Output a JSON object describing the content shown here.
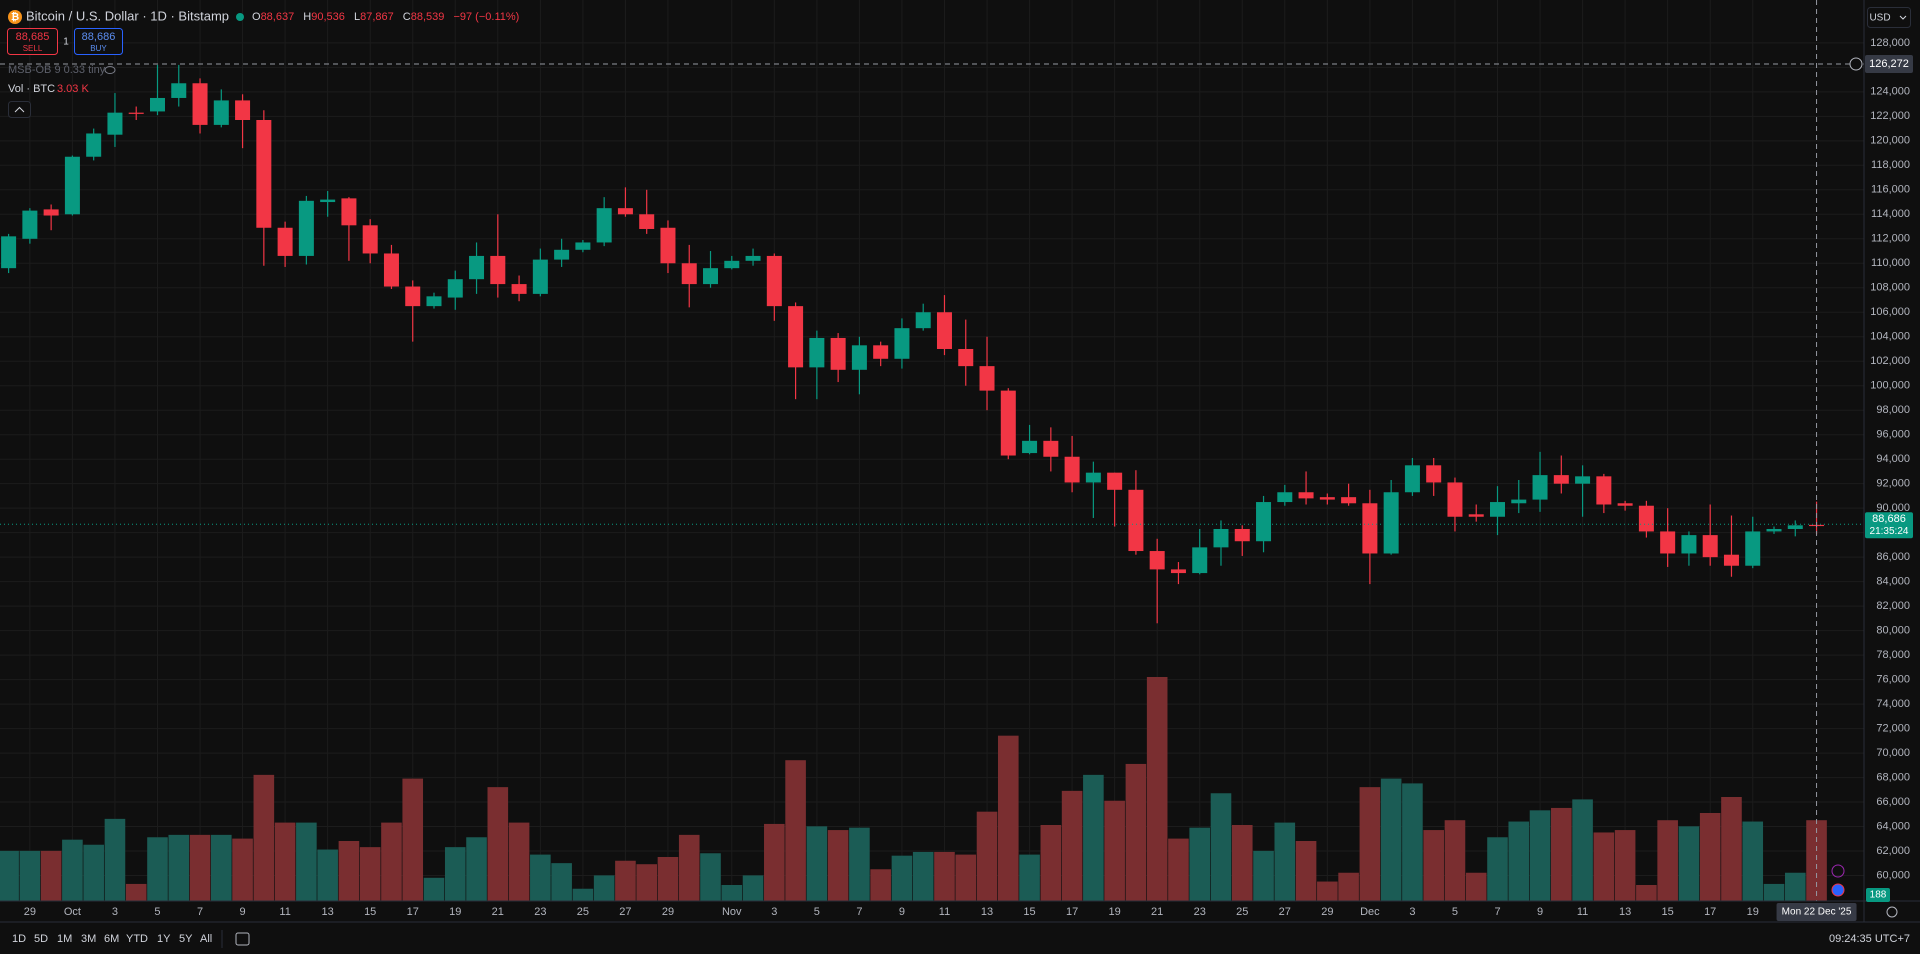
{
  "chart_data": {
    "type": "candlestick",
    "title": "Bitcoin / U.S. Dollar · 1D · Bitstamp",
    "categories": [
      null,
      "29",
      null,
      "Oct",
      null,
      "3",
      null,
      "5",
      null,
      "7",
      null,
      "9",
      null,
      "11",
      null,
      "13",
      null,
      "15",
      null,
      "17",
      null,
      "19",
      null,
      "21",
      null,
      "23",
      null,
      "25",
      null,
      "27",
      null,
      "29",
      null,
      null,
      "Nov",
      null,
      "3",
      null,
      "5",
      null,
      "7",
      null,
      "9",
      null,
      "11",
      null,
      "13",
      null,
      "15",
      null,
      "17",
      null,
      "19",
      null,
      "21",
      null,
      "23",
      null,
      "25",
      null,
      "27",
      null,
      "29",
      null,
      "Dec",
      null,
      "3",
      null,
      "5",
      null,
      "7",
      null,
      "9",
      null,
      "11",
      null,
      "13",
      null,
      "15",
      null,
      "17",
      null,
      "19",
      null,
      null,
      null
    ],
    "open": [
      109600,
      112000,
      114400,
      114000,
      118700,
      120500,
      122300,
      122400,
      123500,
      124700,
      121300,
      123300,
      121700,
      112900,
      110600,
      115000,
      115300,
      113100,
      110800,
      108100,
      106500,
      107200,
      108700,
      110600,
      108300,
      107500,
      110300,
      111100,
      111700,
      114500,
      114000,
      112900,
      110000,
      108300,
      109600,
      110200,
      110600,
      106500,
      101500,
      103900,
      101300,
      103300,
      102200,
      104700,
      106000,
      103000,
      101600,
      99600,
      94500,
      95500,
      94200,
      92100,
      92900,
      91500,
      86500,
      85000,
      84700,
      86800,
      88300,
      87300,
      90500,
      91300,
      90900,
      90900,
      90400,
      86300,
      91300,
      93500,
      92100,
      89500,
      89300,
      90400,
      90700,
      92700,
      92000,
      92600,
      90400,
      90200,
      88100,
      86300,
      87800,
      86200,
      85300,
      88100,
      88300,
      88637
    ],
    "high": [
      112400,
      114500,
      114800,
      118800,
      121000,
      123900,
      122800,
      126200,
      126200,
      125100,
      124200,
      123800,
      122500,
      113400,
      115500,
      115900,
      115400,
      113600,
      111500,
      108600,
      107600,
      109400,
      111700,
      114000,
      109000,
      111200,
      112000,
      111900,
      115400,
      116200,
      116000,
      113500,
      111500,
      111000,
      110600,
      111200,
      110800,
      106800,
      104500,
      104300,
      104000,
      103600,
      105500,
      106700,
      107400,
      105400,
      104000,
      99800,
      96800,
      96600,
      95900,
      93800,
      92900,
      93100,
      87500,
      85600,
      88300,
      89000,
      88600,
      91000,
      91900,
      93000,
      91200,
      92000,
      91500,
      92300,
      94100,
      94100,
      92500,
      90300,
      91800,
      92300,
      94600,
      94300,
      93500,
      92800,
      90600,
      90600,
      90000,
      88100,
      90300,
      89400,
      89300,
      88500,
      89000,
      90536
    ],
    "low": [
      109200,
      111600,
      112700,
      113900,
      118400,
      119500,
      121700,
      122100,
      122800,
      120600,
      121100,
      119400,
      109800,
      109700,
      109900,
      113800,
      110200,
      110000,
      107900,
      103600,
      106300,
      106200,
      107500,
      107200,
      106900,
      107300,
      109700,
      110900,
      111400,
      113800,
      112400,
      109200,
      106400,
      108000,
      109500,
      109800,
      105300,
      98900,
      98900,
      100300,
      99300,
      101600,
      101400,
      104500,
      102500,
      100000,
      98000,
      94000,
      94400,
      93000,
      91300,
      89200,
      88500,
      86200,
      80600,
      83800,
      84600,
      85300,
      86100,
      86400,
      90200,
      90300,
      90300,
      90200,
      83800,
      86200,
      91000,
      91000,
      88100,
      88900,
      87800,
      89600,
      89700,
      91200,
      89300,
      89600,
      89800,
      87600,
      85200,
      85300,
      85300,
      84400,
      85100,
      87900,
      87700,
      87867
    ],
    "close": [
      112200,
      114300,
      113900,
      118700,
      120600,
      122300,
      122200,
      123500,
      124700,
      121300,
      123300,
      121700,
      112900,
      110600,
      115100,
      115200,
      113100,
      110800,
      108100,
      106500,
      107300,
      108700,
      110600,
      108300,
      107500,
      110300,
      111100,
      111700,
      114500,
      114000,
      112800,
      110000,
      108300,
      109600,
      110200,
      110600,
      106500,
      101500,
      103900,
      101300,
      103300,
      102200,
      104700,
      106000,
      103000,
      101600,
      99600,
      94300,
      95500,
      94200,
      92100,
      92900,
      91500,
      86500,
      85000,
      84700,
      86800,
      88300,
      87300,
      90500,
      91300,
      90800,
      90700,
      90400,
      86300,
      91300,
      93500,
      92100,
      89300,
      89300,
      90500,
      90700,
      92700,
      92000,
      92600,
      90300,
      90200,
      88100,
      86300,
      87800,
      86000,
      85300,
      88100,
      88300,
      88600,
      88539
    ],
    "volume": [
      1.88,
      1.88,
      1.88,
      2.3,
      2.11,
      3.08,
      0.64,
      2.39,
      2.48,
      2.48,
      2.48,
      2.34,
      4.73,
      2.94,
      2.94,
      1.93,
      2.25,
      2.02,
      2.94,
      4.59,
      0.87,
      2.02,
      2.39,
      4.27,
      2.94,
      1.74,
      1.42,
      0.46,
      0.96,
      1.51,
      1.38,
      1.65,
      2.48,
      1.79,
      0.6,
      0.96,
      2.89,
      5.28,
      2.8,
      2.66,
      2.75,
      1.19,
      1.7,
      1.84,
      1.84,
      1.74,
      3.35,
      6.2,
      1.74,
      2.85,
      4.13,
      4.73,
      3.76,
      5.14,
      8.4,
      2.34,
      2.75,
      4.04,
      2.85,
      1.88,
      2.94,
      2.25,
      0.73,
      1.06,
      4.27,
      4.59,
      4.41,
      2.66,
      3.03,
      1.06,
      2.39,
      2.98,
      3.4,
      3.49,
      3.81,
      2.57,
      2.66,
      0.6,
      3.03,
      2.8,
      3.3,
      3.9,
      2.98,
      0.64,
      1.06,
      3.03
    ],
    "up_color": "#089981",
    "down_color": "#f23645",
    "volume_up_color": "#1b5c55",
    "volume_down_color": "#7a2e30",
    "ylim": [
      57920,
      131500
    ],
    "yticks": [
      {
        "value": 60000,
        "label": "60,000"
      },
      {
        "value": 62000,
        "label": "62,000"
      },
      {
        "value": 64000,
        "label": "64,000"
      },
      {
        "value": 66000,
        "label": "66,000"
      },
      {
        "value": 68000,
        "label": "68,000"
      },
      {
        "value": 70000,
        "label": "70,000"
      },
      {
        "value": 72000,
        "label": "72,000"
      },
      {
        "value": 74000,
        "label": "74,000"
      },
      {
        "value": 76000,
        "label": "76,000"
      },
      {
        "value": 78000,
        "label": "78,000"
      },
      {
        "value": 80000,
        "label": "80,000"
      },
      {
        "value": 82000,
        "label": "82,000"
      },
      {
        "value": 84000,
        "label": "84,000"
      },
      {
        "value": 86000,
        "label": "86,000"
      },
      {
        "value": 88000,
        "label": "88,000"
      },
      {
        "value": 90000,
        "label": "90,000"
      },
      {
        "value": 92000,
        "label": "92,000"
      },
      {
        "value": 94000,
        "label": "94,000"
      },
      {
        "value": 96000,
        "label": "96,000"
      },
      {
        "value": 98000,
        "label": "98,000"
      },
      {
        "value": 100000,
        "label": "100,000"
      },
      {
        "value": 102000,
        "label": "102,000"
      },
      {
        "value": 104000,
        "label": "104,000"
      },
      {
        "value": 106000,
        "label": "106,000"
      },
      {
        "value": 108000,
        "label": "108,000"
      },
      {
        "value": 110000,
        "label": "110,000"
      },
      {
        "value": 112000,
        "label": "112,000"
      },
      {
        "value": 114000,
        "label": "114,000"
      },
      {
        "value": 116000,
        "label": "116,000"
      },
      {
        "value": 118000,
        "label": "118,000"
      },
      {
        "value": 120000,
        "label": "120,000"
      },
      {
        "value": 122000,
        "label": "122,000"
      },
      {
        "value": 124000,
        "label": "124,000"
      },
      {
        "value": 126000,
        "label": "126,000"
      },
      {
        "value": 128000,
        "label": "128,000"
      }
    ],
    "grid": true,
    "crosshair_price": {
      "value": 126272,
      "label": "126,272"
    },
    "last_price": {
      "value": 88686,
      "label": "88,686"
    }
  },
  "ui": {
    "ohlc": [
      {
        "key": "O",
        "value": "88,637"
      },
      {
        "key": "H",
        "value": "90,536"
      },
      {
        "key": "L",
        "value": "87,867"
      },
      {
        "key": "C",
        "value": "88,539"
      }
    ],
    "change": "−97 (−0.11%)",
    "sell": {
      "price": "88,685",
      "label": "SELL"
    },
    "spread": "1",
    "buy": {
      "price": "88,686",
      "label": "BUY"
    },
    "indicator": "MSB-OB 9 0.33 tiny",
    "vol_name": "Vol · BTC",
    "vol_value": "3.03 K",
    "currency": "USD",
    "countdown": "21:35:24",
    "crosshair_date": "Mon 22 Dec '25",
    "axis_badge": "188",
    "ranges": [
      "1D",
      "5D",
      "1M",
      "3M",
      "6M",
      "YTD",
      "1Y",
      "5Y",
      "All"
    ],
    "clock": "09:24:35 UTC+7"
  }
}
